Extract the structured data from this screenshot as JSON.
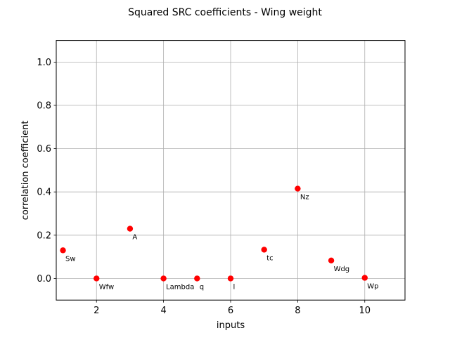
{
  "chart_data": {
    "type": "scatter",
    "title": "Squared SRC coefficients - Wing weight",
    "xlabel": "inputs",
    "ylabel": "correlation coefficient",
    "xlim": [
      0.8,
      11.2
    ],
    "ylim": [
      -0.1,
      1.1
    ],
    "xticks": [
      2,
      4,
      6,
      8,
      10
    ],
    "yticks": [
      0.0,
      0.2,
      0.4,
      0.6,
      0.8,
      1.0
    ],
    "xtick_labels": [
      "2",
      "4",
      "6",
      "8",
      "10"
    ],
    "ytick_labels": [
      "0.0",
      "0.2",
      "0.4",
      "0.6",
      "0.8",
      "1.0"
    ],
    "grid": true,
    "marker_color": "#ff0000",
    "points": [
      {
        "x": 1,
        "y": 0.13,
        "label": "Sw"
      },
      {
        "x": 2,
        "y": 0.0,
        "label": "Wfw"
      },
      {
        "x": 3,
        "y": 0.23,
        "label": "A"
      },
      {
        "x": 4,
        "y": 0.0,
        "label": "Lambda"
      },
      {
        "x": 5,
        "y": 0.0,
        "label": "q"
      },
      {
        "x": 6,
        "y": 0.0,
        "label": "l"
      },
      {
        "x": 7,
        "y": 0.133,
        "label": "tc"
      },
      {
        "x": 8,
        "y": 0.415,
        "label": "Nz"
      },
      {
        "x": 9,
        "y": 0.083,
        "label": "Wdg"
      },
      {
        "x": 10,
        "y": 0.003,
        "label": "Wp"
      }
    ]
  }
}
